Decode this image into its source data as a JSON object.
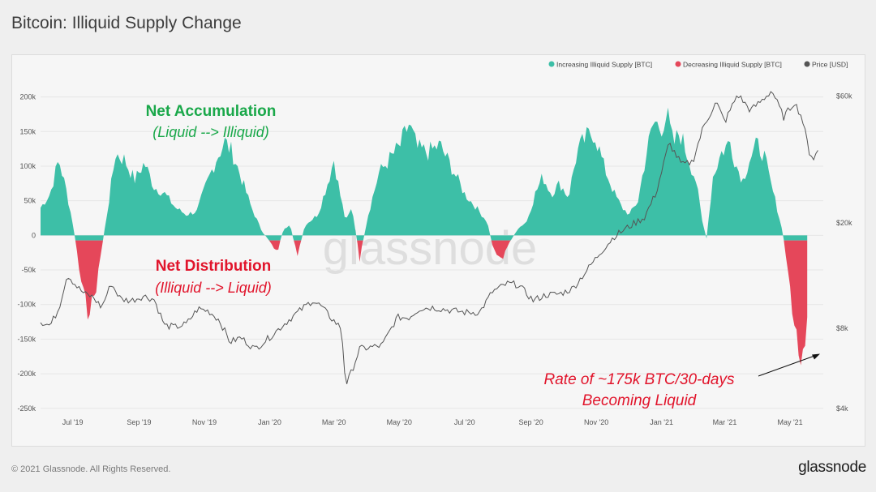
{
  "header": {
    "title": "Bitcoin: Illiquid Supply Change"
  },
  "footer": {
    "copyright": "© 2021 Glassnode. All Rights Reserved.",
    "logo": "glassnode"
  },
  "watermark": "glassnode",
  "colors": {
    "increase": "#3dbfa7",
    "decrease": "#e5475a",
    "price": "#555555",
    "accumulation_text": "#1aa84a",
    "distribution_text": "#e1142b",
    "annotation_text": "#e1142b"
  },
  "chart_data": {
    "type": "area",
    "legend": {
      "placement": "top-right",
      "entries": [
        "Increasing Illiquid Supply [BTC]",
        "Decreasing Illiquid Supply [BTC]",
        "Price [USD]"
      ]
    },
    "x_ticks": [
      "Jul '19",
      "Sep '19",
      "Nov '19",
      "Jan '20",
      "Mar '20",
      "May '20",
      "Jul '20",
      "Sep '20",
      "Nov '20",
      "Jan '21",
      "Mar '21",
      "May '21"
    ],
    "y_left": {
      "ticks": [
        "200k",
        "150k",
        "100k",
        "50k",
        "0",
        "-50k",
        "-100k",
        "-150k",
        "-200k",
        "-250k"
      ],
      "range": [
        -250000,
        200000
      ]
    },
    "y_right": {
      "ticks": [
        "$60k",
        "$20k",
        "$8k",
        "$4k"
      ],
      "scale": "log",
      "range": [
        4000,
        60000
      ]
    },
    "x_range": [
      "2019-06-01",
      "2021-06-01"
    ],
    "series": [
      {
        "name": "Illiquid Supply Change [BTC]",
        "points": [
          [
            "2019-06-01",
            40000
          ],
          [
            "2019-06-10",
            60000
          ],
          [
            "2019-06-18",
            110000
          ],
          [
            "2019-06-25",
            65000
          ],
          [
            "2019-07-02",
            10000
          ],
          [
            "2019-07-08",
            -60000
          ],
          [
            "2019-07-15",
            -110000
          ],
          [
            "2019-07-22",
            -85000
          ],
          [
            "2019-07-28",
            -20000
          ],
          [
            "2019-08-03",
            40000
          ],
          [
            "2019-08-10",
            118000
          ],
          [
            "2019-08-18",
            110000
          ],
          [
            "2019-08-28",
            80000
          ],
          [
            "2019-09-06",
            105000
          ],
          [
            "2019-09-15",
            70000
          ],
          [
            "2019-09-25",
            60000
          ],
          [
            "2019-10-05",
            40000
          ],
          [
            "2019-10-15",
            30000
          ],
          [
            "2019-10-25",
            35000
          ],
          [
            "2019-11-02",
            70000
          ],
          [
            "2019-11-12",
            110000
          ],
          [
            "2019-11-20",
            135000
          ],
          [
            "2019-11-27",
            120000
          ],
          [
            "2019-12-05",
            85000
          ],
          [
            "2019-12-15",
            40000
          ],
          [
            "2019-12-25",
            5000
          ],
          [
            "2020-01-02",
            -10000
          ],
          [
            "2020-01-08",
            -25000
          ],
          [
            "2020-01-14",
            10000
          ],
          [
            "2020-01-20",
            15000
          ],
          [
            "2020-01-27",
            -30000
          ],
          [
            "2020-02-03",
            15000
          ],
          [
            "2020-02-15",
            30000
          ],
          [
            "2020-02-25",
            80000
          ],
          [
            "2020-03-01",
            110000
          ],
          [
            "2020-03-06",
            65000
          ],
          [
            "2020-03-12",
            20000
          ],
          [
            "2020-03-18",
            40000
          ],
          [
            "2020-03-25",
            -35000
          ],
          [
            "2020-04-02",
            30000
          ],
          [
            "2020-04-12",
            90000
          ],
          [
            "2020-04-22",
            110000
          ],
          [
            "2020-05-02",
            130000
          ],
          [
            "2020-05-10",
            160000
          ],
          [
            "2020-05-18",
            125000
          ],
          [
            "2020-05-28",
            120000
          ],
          [
            "2020-06-08",
            130000
          ],
          [
            "2020-06-20",
            95000
          ],
          [
            "2020-07-01",
            60000
          ],
          [
            "2020-07-12",
            40000
          ],
          [
            "2020-07-22",
            20000
          ],
          [
            "2020-07-28",
            -20000
          ],
          [
            "2020-08-05",
            -35000
          ],
          [
            "2020-08-12",
            -10000
          ],
          [
            "2020-08-20",
            10000
          ],
          [
            "2020-08-28",
            20000
          ],
          [
            "2020-09-05",
            60000
          ],
          [
            "2020-09-12",
            85000
          ],
          [
            "2020-09-20",
            60000
          ],
          [
            "2020-09-28",
            75000
          ],
          [
            "2020-10-06",
            55000
          ],
          [
            "2020-10-14",
            120000
          ],
          [
            "2020-10-22",
            140000
          ],
          [
            "2020-10-30",
            150000
          ],
          [
            "2020-11-08",
            100000
          ],
          [
            "2020-11-18",
            60000
          ],
          [
            "2020-11-25",
            40000
          ],
          [
            "2020-12-02",
            30000
          ],
          [
            "2020-12-10",
            50000
          ],
          [
            "2020-12-18",
            120000
          ],
          [
            "2020-12-25",
            165000
          ],
          [
            "2020-12-31",
            155000
          ],
          [
            "2021-01-06",
            175000
          ],
          [
            "2021-01-12",
            130000
          ],
          [
            "2021-01-18",
            150000
          ],
          [
            "2021-01-24",
            120000
          ],
          [
            "2021-02-02",
            80000
          ],
          [
            "2021-02-08",
            20000
          ],
          [
            "2021-02-12",
            -5000
          ],
          [
            "2021-02-18",
            85000
          ],
          [
            "2021-02-26",
            120000
          ],
          [
            "2021-03-06",
            135000
          ],
          [
            "2021-03-12",
            100000
          ],
          [
            "2021-03-18",
            80000
          ],
          [
            "2021-03-24",
            110000
          ],
          [
            "2021-03-31",
            130000
          ],
          [
            "2021-04-06",
            120000
          ],
          [
            "2021-04-12",
            80000
          ],
          [
            "2021-04-18",
            45000
          ],
          [
            "2021-04-24",
            5000
          ],
          [
            "2021-04-28",
            -40000
          ],
          [
            "2021-05-02",
            -90000
          ],
          [
            "2021-05-06",
            -140000
          ],
          [
            "2021-05-10",
            -175000
          ],
          [
            "2021-05-14",
            -190000
          ],
          [
            "2021-05-18",
            -110000
          ]
        ]
      },
      {
        "name": "Price [USD]",
        "points": [
          [
            "2019-06-01",
            8500
          ],
          [
            "2019-06-10",
            8200
          ],
          [
            "2019-06-18",
            9500
          ],
          [
            "2019-06-26",
            12800
          ],
          [
            "2019-07-05",
            11500
          ],
          [
            "2019-07-12",
            10800
          ],
          [
            "2019-07-20",
            10500
          ],
          [
            "2019-07-28",
            9600
          ],
          [
            "2019-08-06",
            11800
          ],
          [
            "2019-08-15",
            10300
          ],
          [
            "2019-08-25",
            10200
          ],
          [
            "2019-09-05",
            10600
          ],
          [
            "2019-09-15",
            10300
          ],
          [
            "2019-09-25",
            8200
          ],
          [
            "2019-10-05",
            8100
          ],
          [
            "2019-10-15",
            8300
          ],
          [
            "2019-10-26",
            9500
          ],
          [
            "2019-11-05",
            9300
          ],
          [
            "2019-11-15",
            8600
          ],
          [
            "2019-11-25",
            7100
          ],
          [
            "2019-12-05",
            7400
          ],
          [
            "2019-12-18",
            6700
          ],
          [
            "2019-12-30",
            7300
          ],
          [
            "2020-01-10",
            8000
          ],
          [
            "2020-01-20",
            8700
          ],
          [
            "2020-01-30",
            9400
          ],
          [
            "2020-02-10",
            10200
          ],
          [
            "2020-02-18",
            9700
          ],
          [
            "2020-02-28",
            8700
          ],
          [
            "2020-03-08",
            8000
          ],
          [
            "2020-03-12",
            4900
          ],
          [
            "2020-03-16",
            5300
          ],
          [
            "2020-03-25",
            6700
          ],
          [
            "2020-04-05",
            6800
          ],
          [
            "2020-04-15",
            6900
          ],
          [
            "2020-04-29",
            8800
          ],
          [
            "2020-05-10",
            8800
          ],
          [
            "2020-05-20",
            9500
          ],
          [
            "2020-06-01",
            9600
          ],
          [
            "2020-06-15",
            9400
          ],
          [
            "2020-07-01",
            9200
          ],
          [
            "2020-07-15",
            9200
          ],
          [
            "2020-07-27",
            11000
          ],
          [
            "2020-08-10",
            11800
          ],
          [
            "2020-08-20",
            11700
          ],
          [
            "2020-09-03",
            10200
          ],
          [
            "2020-09-15",
            10700
          ],
          [
            "2020-09-28",
            10800
          ],
          [
            "2020-10-10",
            11300
          ],
          [
            "2020-10-21",
            12900
          ],
          [
            "2020-11-05",
            15500
          ],
          [
            "2020-11-18",
            17800
          ],
          [
            "2020-12-01",
            19300
          ],
          [
            "2020-12-16",
            21000
          ],
          [
            "2020-12-27",
            26000
          ],
          [
            "2021-01-08",
            40000
          ],
          [
            "2021-01-20",
            33000
          ],
          [
            "2021-01-30",
            34000
          ],
          [
            "2021-02-09",
            46000
          ],
          [
            "2021-02-21",
            57000
          ],
          [
            "2021-03-01",
            48000
          ],
          [
            "2021-03-13",
            61000
          ],
          [
            "2021-03-25",
            53000
          ],
          [
            "2021-04-05",
            58000
          ],
          [
            "2021-04-14",
            63000
          ],
          [
            "2021-04-25",
            50000
          ],
          [
            "2021-05-05",
            57000
          ],
          [
            "2021-05-12",
            50000
          ],
          [
            "2021-05-19",
            37000
          ],
          [
            "2021-05-23",
            35000
          ],
          [
            "2021-05-28",
            38000
          ]
        ]
      }
    ],
    "annotations": {
      "accumulation_title": "Net Accumulation",
      "accumulation_sub": "(Liquid --> Illiquid)",
      "distribution_title": "Net Distribution",
      "distribution_sub": "(Illiquid --> Liquid)",
      "rate_line1": "Rate of ~175k BTC/30-days",
      "rate_line2": "Becoming Liquid"
    }
  }
}
